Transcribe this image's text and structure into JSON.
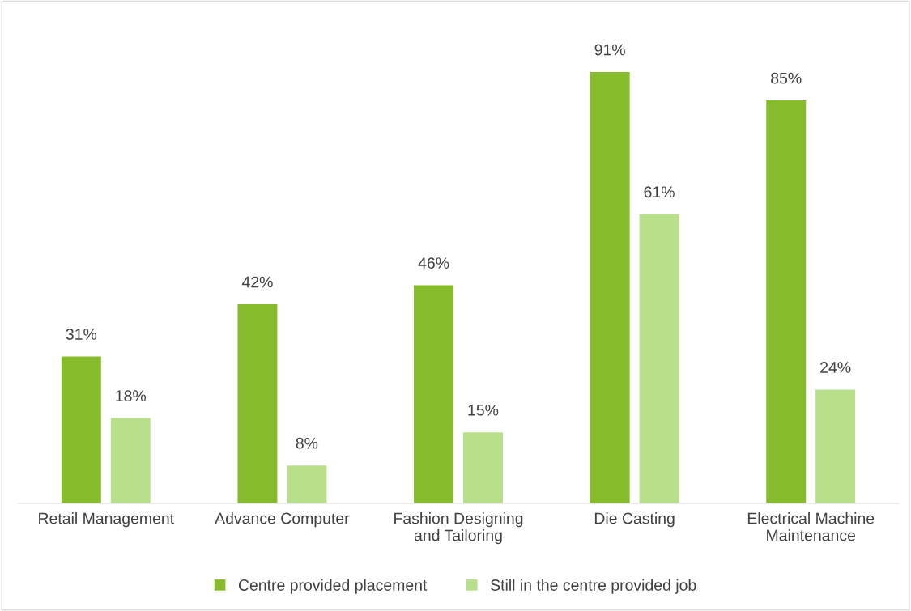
{
  "chart_data": {
    "type": "bar",
    "categories": [
      "Retail Management",
      "Advance Computer",
      "Fashion Designing\nand Tailoring",
      "Die Casting",
      "Electrical Machine\nMaintenance"
    ],
    "series": [
      {
        "name": "Centre provided placement",
        "color": "#86bc2b",
        "values": [
          31,
          42,
          46,
          91,
          85
        ],
        "value_labels": [
          "31%",
          "42%",
          "46%",
          "91%",
          "85%"
        ]
      },
      {
        "name": "Still in the centre provided job",
        "color": "#b8e08a",
        "values": [
          18,
          8,
          15,
          61,
          24
        ],
        "value_labels": [
          "18%",
          "8%",
          "15%",
          "61%",
          "24%"
        ]
      }
    ],
    "legend": "bottom"
  }
}
